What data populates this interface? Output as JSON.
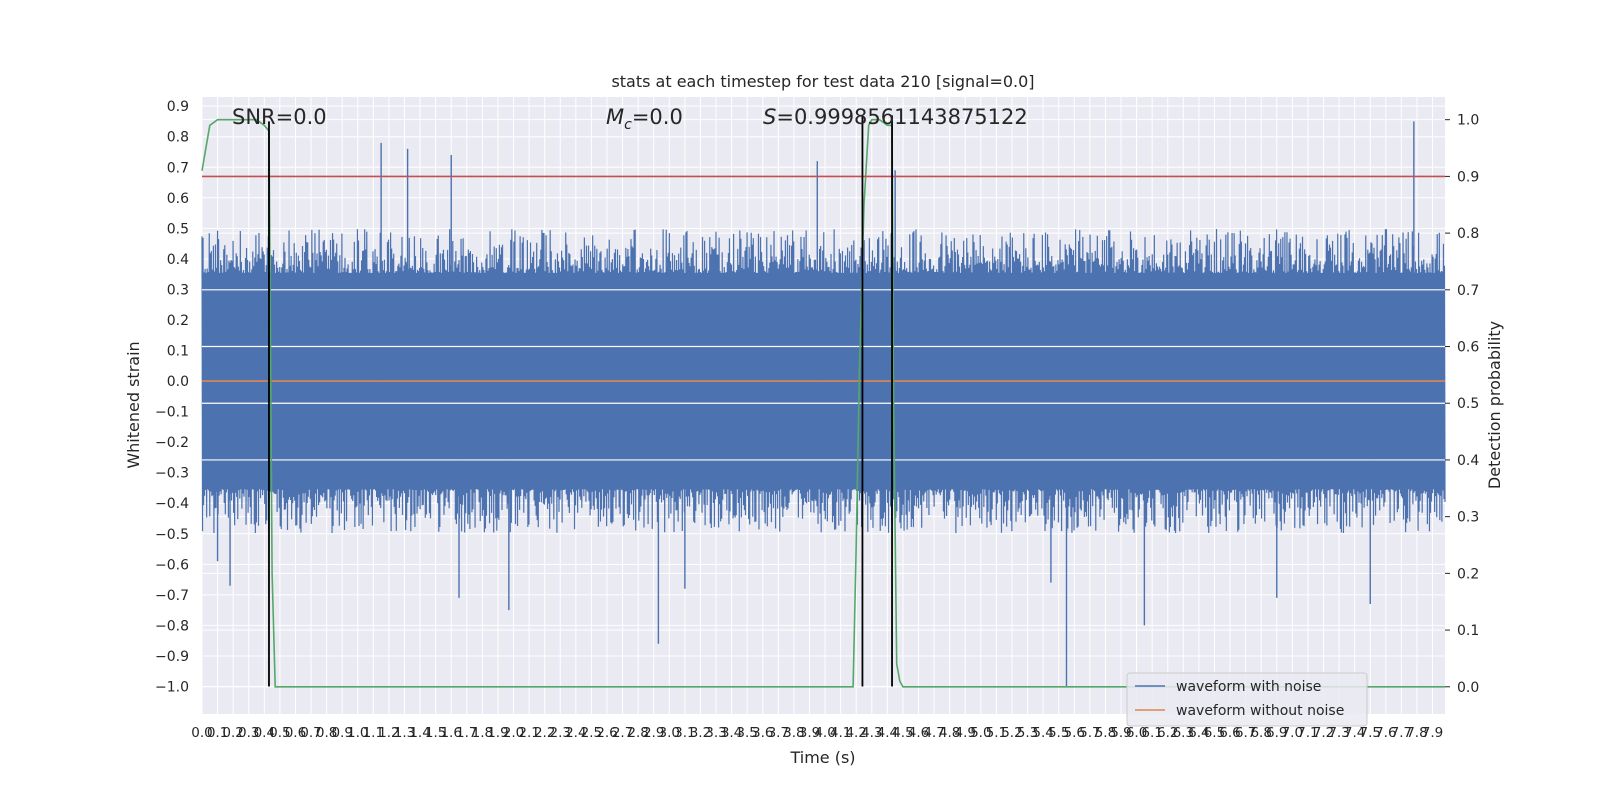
{
  "chart_data": {
    "type": "line",
    "title": "stats at each timestep for test data 210 [signal=0.0]",
    "xlabel": "Time (s)",
    "ylabel": "Whitened strain",
    "y2label": "Detection probability",
    "xlim": [
      0.0,
      7.98
    ],
    "ylim": [
      -1.09,
      0.93
    ],
    "y2lim": [
      -0.048,
      1.04
    ],
    "grid": true,
    "x_ticks": [
      0.0,
      0.1,
      0.2,
      0.3,
      0.4,
      0.5,
      0.6,
      0.7,
      0.8,
      0.9,
      1.0,
      1.1,
      1.2,
      1.3,
      1.4,
      1.5,
      1.6,
      1.7,
      1.8,
      1.9,
      2.0,
      2.1,
      2.2,
      2.3,
      2.4,
      2.5,
      2.6,
      2.7,
      2.8,
      2.9,
      3.0,
      3.1,
      3.2,
      3.3,
      3.4,
      3.5,
      3.6,
      3.7,
      3.8,
      3.9,
      4.0,
      4.1,
      4.2,
      4.3,
      4.4,
      4.5,
      4.6,
      4.7,
      4.8,
      4.9,
      5.0,
      5.1,
      5.2,
      5.3,
      5.4,
      5.5,
      5.6,
      5.7,
      5.8,
      5.9,
      6.0,
      6.1,
      6.2,
      6.3,
      6.4,
      6.5,
      6.6,
      6.7,
      6.8,
      6.9,
      7.0,
      7.1,
      7.2,
      7.3,
      7.4,
      7.5,
      7.6,
      7.7,
      7.8,
      7.9
    ],
    "y_ticks": [
      -1.0,
      -0.9,
      -0.8,
      -0.7,
      -0.6,
      -0.5,
      -0.4,
      -0.3,
      -0.2,
      -0.1,
      0.0,
      0.1,
      0.2,
      0.3,
      0.4,
      0.5,
      0.6,
      0.7,
      0.8,
      0.9
    ],
    "y2_ticks": [
      0.0,
      0.1,
      0.2,
      0.3,
      0.4,
      0.5,
      0.6,
      0.7,
      0.8,
      0.9,
      1.0
    ],
    "annotations": [
      {
        "text": "SNR=0.0",
        "x": 0.19,
        "y": 0.865
      },
      {
        "text": "=0.0",
        "prefix": "M",
        "subscript": "c",
        "x": 2.6,
        "y": 0.865
      },
      {
        "text": "=0.9998561143875122",
        "prefix": "S",
        "x": 3.6,
        "y": 0.865
      }
    ],
    "series": [
      {
        "name": "waveform with noise",
        "color": "#4c72b0",
        "kind": "noise",
        "band": 0.33,
        "typical_amplitude": 0.45,
        "n_points": 2400,
        "peaks": [
          {
            "x": 1.15,
            "y": 0.78
          },
          {
            "x": 1.32,
            "y": 0.76
          },
          {
            "x": 1.6,
            "y": 0.74
          },
          {
            "x": 3.95,
            "y": 0.72
          },
          {
            "x": 4.45,
            "y": 0.69
          },
          {
            "x": 7.78,
            "y": 0.85
          },
          {
            "x": 0.1,
            "y": -0.59
          },
          {
            "x": 0.18,
            "y": -0.67
          },
          {
            "x": 1.65,
            "y": -0.71
          },
          {
            "x": 1.97,
            "y": -0.75
          },
          {
            "x": 2.93,
            "y": -0.86
          },
          {
            "x": 3.1,
            "y": -0.68
          },
          {
            "x": 5.45,
            "y": -0.66
          },
          {
            "x": 5.55,
            "y": -1.0
          },
          {
            "x": 6.05,
            "y": -0.8
          },
          {
            "x": 6.9,
            "y": -0.71
          },
          {
            "x": 7.5,
            "y": -0.73
          }
        ]
      },
      {
        "name": "waveform without noise",
        "color": "#dd8452",
        "x": [
          0.0,
          7.98
        ],
        "y": [
          0.0,
          0.0
        ]
      },
      {
        "name": "",
        "color": "#55a868",
        "axis": "secondary",
        "x": [
          0.0,
          0.05,
          0.1,
          0.2,
          0.35,
          0.4,
          0.43,
          0.44,
          0.45,
          0.47,
          0.5,
          0.7,
          1.0,
          2.0,
          3.0,
          4.0,
          4.18,
          4.2,
          4.22,
          4.25,
          4.28,
          4.3,
          4.33,
          4.35,
          4.4,
          4.43,
          4.44,
          4.46,
          4.48,
          4.5,
          4.6,
          7.98
        ],
        "y": [
          0.91,
          0.99,
          1.0,
          1.0,
          1.0,
          0.99,
          0.98,
          0.6,
          0.2,
          0.0,
          0.0,
          0.0,
          0.0,
          0.0,
          0.0,
          0.0,
          0.0,
          0.25,
          0.55,
          0.85,
          0.99,
          1.0,
          1.0,
          1.0,
          0.99,
          0.99,
          0.5,
          0.04,
          0.01,
          0.0,
          0.0,
          0.0
        ]
      },
      {
        "name": "",
        "color": "#c44e52",
        "axis": "secondary",
        "x": [
          0.0,
          7.98
        ],
        "y": [
          0.9,
          0.9
        ]
      }
    ],
    "vlines": [
      {
        "x": 0.43,
        "y_from": -1.0,
        "y_to": 0.85,
        "color": "#000000"
      },
      {
        "x": 4.24,
        "y_from": -1.0,
        "y_to": 0.87,
        "color": "#000000"
      },
      {
        "x": 4.43,
        "y_from": -1.0,
        "y_to": 0.87,
        "color": "#000000"
      }
    ],
    "legend": {
      "position": "lower-right",
      "entries": [
        {
          "label": "waveform with noise",
          "color": "#4c72b0"
        },
        {
          "label": "waveform without noise",
          "color": "#dd8452"
        }
      ]
    }
  }
}
